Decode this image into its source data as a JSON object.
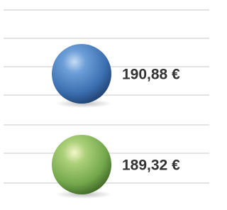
{
  "items": [
    {
      "label": "190,88 €"
    },
    {
      "label": "189,32 €"
    }
  ]
}
